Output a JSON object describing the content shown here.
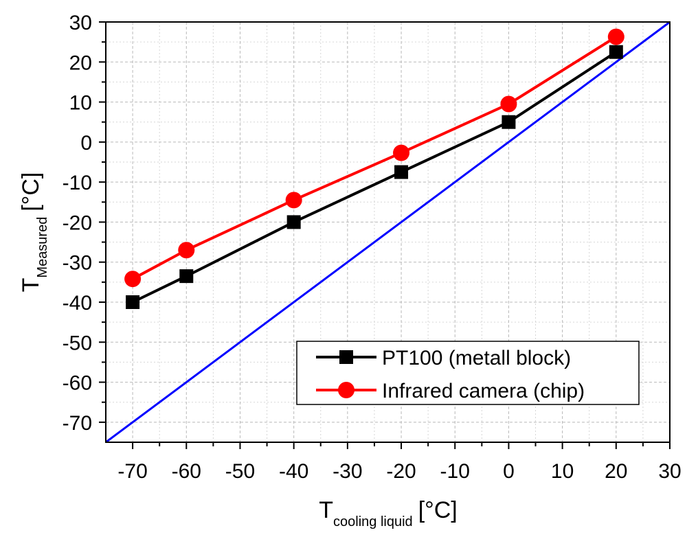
{
  "chart_data": {
    "type": "line",
    "xlabel": {
      "main": "T",
      "sub": "cooling liquid",
      "unit": "[°C]"
    },
    "ylabel": {
      "main": "T",
      "sub": "Measured",
      "unit": "[°C]"
    },
    "xlim": [
      -75,
      30
    ],
    "ylim": [
      -75,
      30
    ],
    "xticks": [
      -70,
      -60,
      -50,
      -40,
      -30,
      -20,
      -10,
      0,
      10,
      20,
      30
    ],
    "yticks": [
      -70,
      -60,
      -50,
      -40,
      -30,
      -20,
      -10,
      0,
      10,
      20,
      30
    ],
    "xtick_labels": [
      "-70",
      "-60",
      "-50",
      "-40",
      "-30",
      "-20",
      "-10",
      "0",
      "10",
      "20",
      "30"
    ],
    "ytick_labels": [
      "-70",
      "-60",
      "-50",
      "-40",
      "-30",
      "-20",
      "-10",
      "0",
      "10",
      "20",
      "30"
    ],
    "grid": true,
    "legend_position": "bottom-right",
    "series": [
      {
        "name": "PT100 (metall block)",
        "color": "#000000",
        "marker": "square",
        "x": [
          -70,
          -60,
          -40,
          -20,
          0,
          20
        ],
        "y": [
          -40,
          -33.5,
          -20,
          -7.5,
          5,
          22.5
        ]
      },
      {
        "name": "Infrared camera (chip)",
        "color": "#ff0000",
        "marker": "circle",
        "x": [
          -70,
          -60,
          -40,
          -20,
          0,
          20
        ],
        "y": [
          -34.2,
          -27,
          -14.5,
          -2.7,
          9.5,
          26.3
        ]
      },
      {
        "color": "#0000ff",
        "marker": "none",
        "x": [
          -75,
          30
        ],
        "y": [
          -75,
          30
        ]
      }
    ]
  }
}
